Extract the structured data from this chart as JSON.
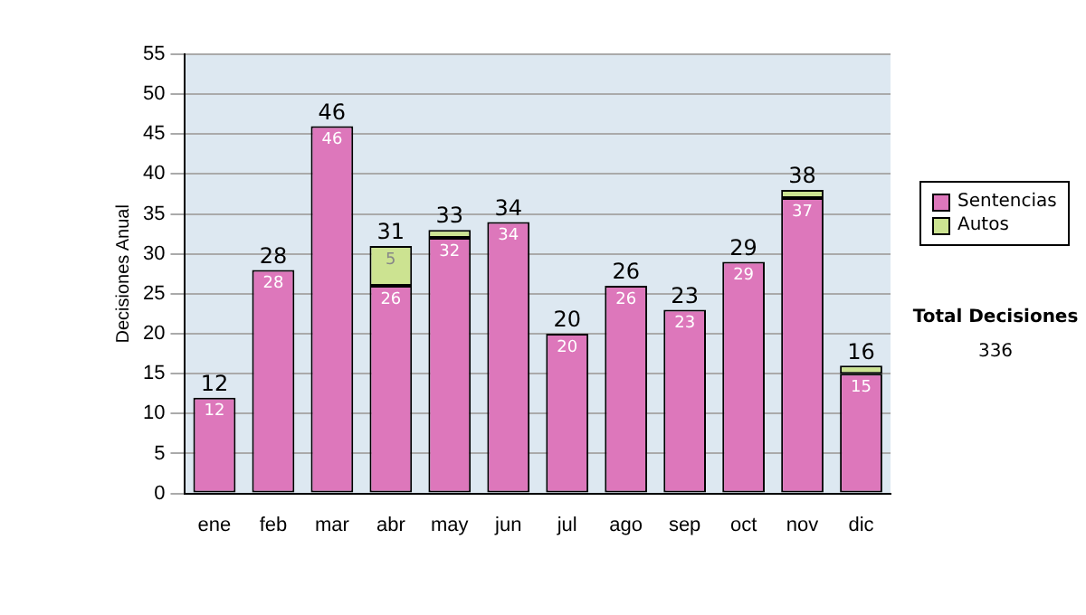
{
  "chart_data": {
    "type": "bar",
    "stacked": true,
    "ylabel": "Decisiones Anual",
    "categories": [
      "ene",
      "feb",
      "mar",
      "abr",
      "may",
      "jun",
      "jul",
      "ago",
      "sep",
      "oct",
      "nov",
      "dic"
    ],
    "series": [
      {
        "name": "Sentencias",
        "color": "#dd77bb",
        "values": [
          12,
          28,
          46,
          26,
          32,
          34,
          20,
          26,
          23,
          29,
          37,
          15
        ],
        "value_labels": [
          "12",
          "28",
          "46",
          "26",
          "32",
          "34",
          "20",
          "26",
          "23",
          "29",
          "37",
          "15"
        ]
      },
      {
        "name": "Autos",
        "color": "#cce391",
        "values": [
          0,
          0,
          0,
          5,
          1,
          0,
          0,
          0,
          0,
          0,
          1,
          1
        ],
        "value_labels": [
          null,
          null,
          null,
          "5",
          null,
          null,
          null,
          null,
          null,
          null,
          null,
          null
        ]
      }
    ],
    "totals": [
      "12",
      "28",
      "46",
      "31",
      "33",
      "34",
      "20",
      "26",
      "23",
      "29",
      "38",
      "16"
    ],
    "ylim": [
      0,
      55
    ],
    "yticks": [
      0,
      5,
      10,
      15,
      20,
      25,
      30,
      35,
      40,
      45,
      50,
      55
    ],
    "grid": "y",
    "legend": "right",
    "annotations": [
      "Total Decisiones",
      "336"
    ]
  }
}
